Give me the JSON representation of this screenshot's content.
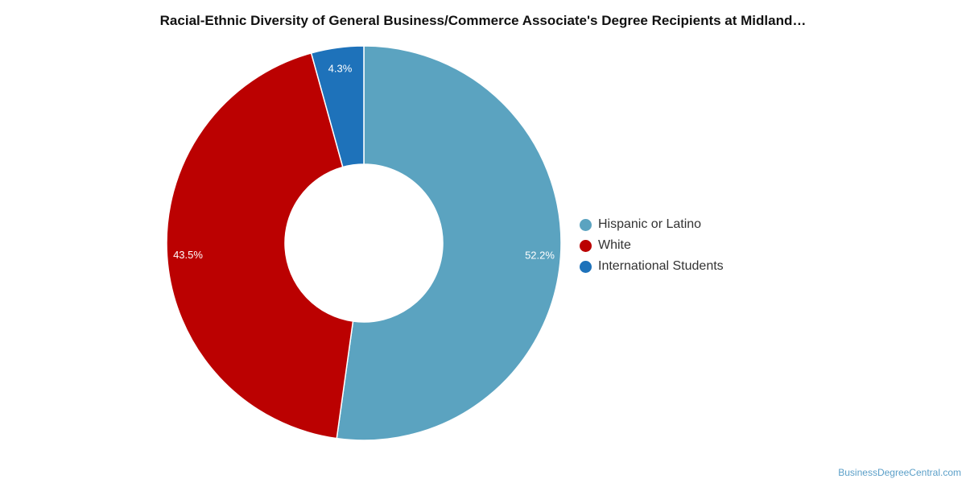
{
  "chart_data": {
    "type": "pie",
    "donut": true,
    "title": "Racial-Ethnic Diversity of General Business/Commerce Associate's Degree Recipients at Midland…",
    "slices": [
      {
        "label": "Hispanic or Latino",
        "value": 52.2,
        "display": "52.2%",
        "color": "#5ba3c0"
      },
      {
        "label": "White",
        "value": 43.5,
        "display": "43.5%",
        "color": "#bb0101"
      },
      {
        "label": "International Students",
        "value": 4.3,
        "display": "4.3%",
        "color": "#1e72ba"
      }
    ],
    "legend_position": "right"
  },
  "watermark": "BusinessDegreeCentral.com"
}
